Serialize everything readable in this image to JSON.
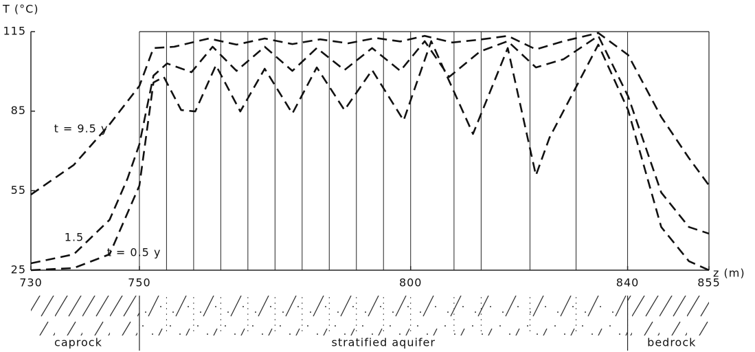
{
  "chart_data": {
    "type": "line",
    "y_label": "T (°C)",
    "x_label": "z (m)",
    "xlim": [
      730,
      855
    ],
    "xticks": [
      730,
      750,
      800,
      840,
      855
    ],
    "ylim": [
      25,
      115
    ],
    "yticks": [
      25,
      55,
      85,
      115
    ],
    "annotations": [
      "t = 9.5 y",
      "1.5",
      "t = 0.5 y"
    ],
    "layer_boundaries": [
      750,
      755,
      760,
      765,
      770,
      775,
      780,
      785,
      790,
      795,
      800,
      808,
      813,
      822,
      830.5,
      840
    ],
    "strata": [
      "caprock",
      "stratified aquifer",
      "bedrock"
    ],
    "series": [
      {
        "name": "t = 9.5 y",
        "color": "#111111",
        "x": [
          730,
          737.9,
          744.5,
          750,
          752.6,
          756.4,
          762.8,
          767.9,
          773.1,
          778.2,
          783.3,
          788.5,
          793.6,
          798.1,
          802.6,
          807.7,
          812.8,
          817.9,
          823.1,
          828.2,
          834.6,
          840.1,
          846.2,
          851.3,
          855
        ],
        "values": [
          53.5,
          64.7,
          80,
          94.5,
          108.8,
          109.3,
          112.4,
          110.1,
          112.4,
          110.3,
          112.1,
          110.6,
          112.6,
          111.3,
          113.4,
          110.9,
          112,
          113.4,
          108.3,
          111.4,
          114.5,
          106.2,
          82.8,
          67.3,
          57
        ]
      },
      {
        "name": "1.5",
        "color": "#111111",
        "x": [
          730,
          737.9,
          744.5,
          747.8,
          750,
          752.6,
          755.1,
          759.6,
          763.5,
          767.9,
          773.1,
          778.2,
          782.7,
          787.8,
          792.9,
          798.1,
          802.6,
          807.1,
          812.8,
          817.9,
          823.1,
          828.2,
          834.6,
          840.1,
          846.2,
          851.3,
          855
        ],
        "values": [
          27.6,
          31,
          44,
          59.5,
          72.5,
          98.4,
          103,
          99.7,
          109.3,
          100.2,
          109.3,
          100.2,
          108.8,
          100.5,
          108.8,
          100.2,
          111.4,
          97.9,
          107.5,
          111.4,
          101.5,
          104.6,
          113.4,
          90.6,
          54.3,
          41.3,
          38.8
        ]
      },
      {
        "name": "t = 0.5 y",
        "color": "#111111",
        "x": [
          730,
          737.9,
          744.5,
          750,
          752.6,
          754.5,
          757.7,
          760.3,
          764.1,
          768.6,
          773.1,
          778.2,
          782.7,
          787.8,
          792.9,
          798.7,
          803.8,
          811.5,
          817.9,
          823.1,
          825.6,
          834.6,
          840.1,
          846.2,
          851.3,
          855
        ],
        "values": [
          25,
          25.8,
          31,
          56.9,
          95.8,
          97.9,
          85.4,
          84.9,
          102.3,
          84.9,
          101,
          84.1,
          101.5,
          85.4,
          100.5,
          81.5,
          111.4,
          76.4,
          108.8,
          60.8,
          75,
          110.1,
          85.4,
          41.3,
          28.4,
          25
        ]
      }
    ]
  }
}
